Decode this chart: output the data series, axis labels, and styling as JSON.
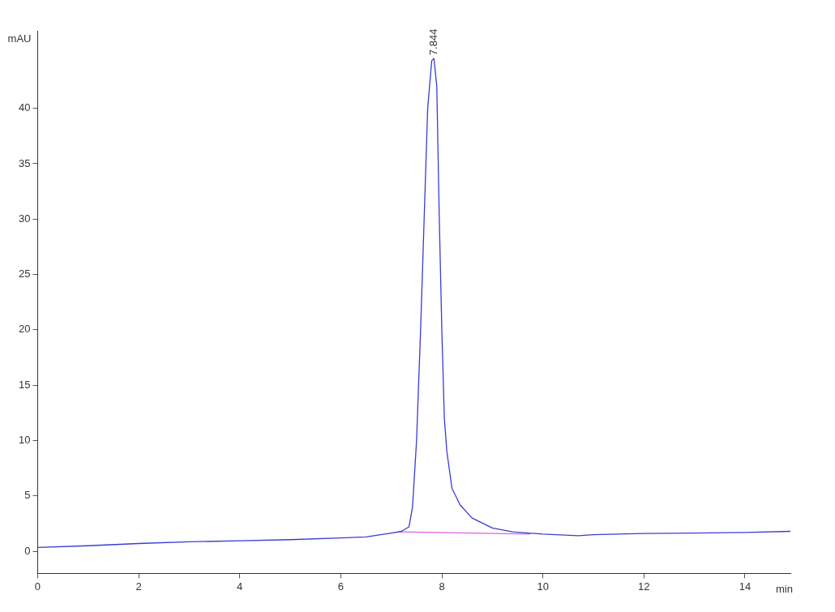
{
  "chart_data": {
    "type": "line",
    "xlabel": "min",
    "ylabel": "mAU",
    "xlim": [
      0,
      14.9
    ],
    "ylim": [
      -2,
      47
    ],
    "xticks": [
      0,
      2,
      4,
      6,
      8,
      10,
      12,
      14
    ],
    "yticks": [
      0,
      5,
      10,
      15,
      20,
      25,
      30,
      35,
      40
    ],
    "grid": false,
    "legend": false,
    "marker": "none",
    "line_style": "solid",
    "series": [
      {
        "color": "#3b3bd6",
        "x": [
          0,
          1,
          2,
          3,
          4,
          5,
          6,
          6.5,
          7,
          7.2,
          7.35,
          7.42,
          7.5,
          7.58,
          7.65,
          7.72,
          7.8,
          7.844,
          7.9,
          7.95,
          8.0,
          8.05,
          8.1,
          8.2,
          8.36,
          8.6,
          9,
          9.4,
          10,
          10.7,
          11,
          12,
          13,
          14,
          14.9
        ],
        "values": [
          0.35,
          0.5,
          0.7,
          0.85,
          0.95,
          1.05,
          1.2,
          1.3,
          1.65,
          1.8,
          2.2,
          4,
          10,
          20,
          30,
          40,
          44.3,
          44.5,
          42,
          30,
          20,
          12,
          9,
          5.7,
          4.2,
          3,
          2.1,
          1.75,
          1.55,
          1.4,
          1.5,
          1.6,
          1.65,
          1.7,
          1.8
        ]
      },
      {
        "type": "line",
        "color": "#e060e0",
        "x": [
          7.15,
          9.75
        ],
        "values": [
          1.75,
          1.55
        ]
      }
    ],
    "annotations": [
      {
        "text": "7.844",
        "x": 7.844,
        "y": 44.5
      }
    ]
  }
}
